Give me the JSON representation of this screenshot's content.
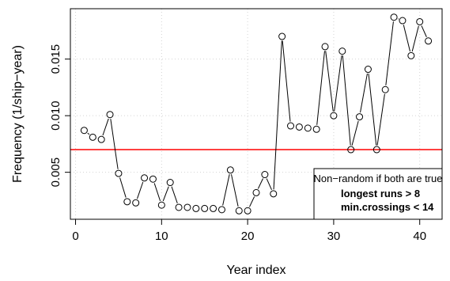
{
  "chart_data": {
    "type": "line",
    "title": "",
    "xlabel": "Year index",
    "ylabel": "Frequency (1/ship−year)",
    "xlim": [
      -0.6,
      42.6
    ],
    "ylim": [
      0.00085,
      0.01945
    ],
    "x_ticks": [
      0,
      10,
      20,
      30,
      40
    ],
    "x_tick_labels": [
      "0",
      "10",
      "20",
      "30",
      "40"
    ],
    "y_ticks": [
      0.005,
      0.01,
      0.015
    ],
    "y_tick_labels": [
      "0.005",
      "0.010",
      "0.015"
    ],
    "grid": true,
    "series": [
      {
        "x": [
          1,
          2,
          3,
          4,
          5,
          6,
          7,
          8,
          9,
          10,
          11,
          12,
          13,
          14,
          15,
          16,
          17,
          18,
          19,
          20,
          21,
          22,
          23,
          24,
          25,
          26,
          27,
          28,
          29,
          30,
          31,
          32,
          33,
          34,
          35,
          36,
          37,
          38,
          39,
          40,
          41
        ],
        "values": [
          0.0087,
          0.0081,
          0.0079,
          0.0101,
          0.0049,
          0.0024,
          0.0023,
          0.0045,
          0.0044,
          0.0021,
          0.0041,
          0.0019,
          0.0019,
          0.0018,
          0.0018,
          0.0018,
          0.0017,
          0.0052,
          0.0016,
          0.0016,
          0.0032,
          0.0048,
          0.0031,
          0.017,
          0.0091,
          0.009,
          0.0089,
          0.0088,
          0.0161,
          0.01,
          0.0157,
          0.007,
          0.0099,
          0.0141,
          0.007,
          0.0123,
          0.0187,
          0.0184,
          0.0153,
          0.0183,
          0.0166
        ],
        "color": "#000000",
        "marker": "open-circle",
        "line_type": "b"
      }
    ],
    "reference_line": {
      "y": 0.007,
      "color": "#ff0000"
    },
    "legend": {
      "position": "bottom-right",
      "title": "Non−random if both are true",
      "lines": [
        "longest runs > 8",
        "min.crossings < 14"
      ]
    }
  }
}
